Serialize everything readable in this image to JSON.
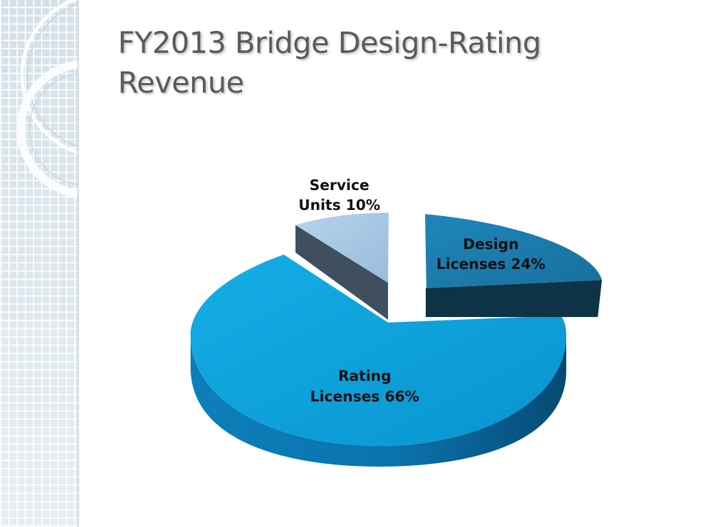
{
  "slide": {
    "title_line1": "FY2013 Bridge Design-Rating",
    "title_line2": "Revenue"
  },
  "chart_data": {
    "type": "pie",
    "style": "3d-exploded",
    "title": "FY2013 Bridge Design-Rating Revenue",
    "slices": [
      {
        "label_line1": "Service",
        "label_line2": "Units 10%",
        "value": 10,
        "color": "#a8c8e4",
        "side_color": "#3f4f5f"
      },
      {
        "label_line1": "Design",
        "label_line2": "Licenses 24%",
        "value": 24,
        "color": "#1c7db0",
        "side_color": "#0e3347"
      },
      {
        "label_line1": "Rating",
        "label_line2": "Licenses 66%",
        "value": 66,
        "color": "#0ca0db",
        "side_color": "#0a6fa3"
      }
    ],
    "legend": "none",
    "data_labels": "category and percent"
  }
}
